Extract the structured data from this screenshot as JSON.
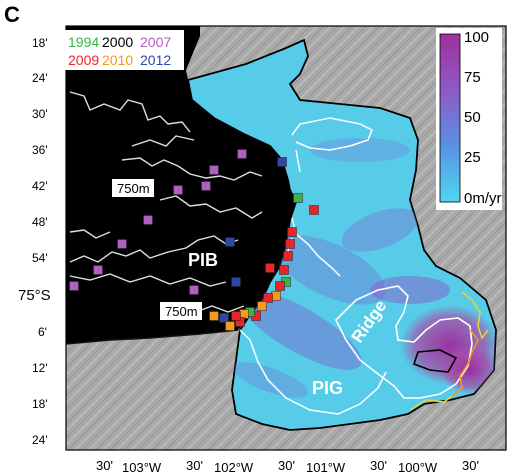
{
  "panel_label": "C",
  "legend_years": [
    {
      "year": "1994",
      "color": "#3cb44b"
    },
    {
      "year": "2000",
      "color": "#000000"
    },
    {
      "year": "2007",
      "color": "#b060c0"
    },
    {
      "year": "2009",
      "color": "#e8262a"
    },
    {
      "year": "2010",
      "color": "#f39a1f"
    },
    {
      "year": "2012",
      "color": "#2f46a8"
    }
  ],
  "colorbar": {
    "ticks": [
      "100",
      "75",
      "50",
      "25",
      "0m/yr"
    ],
    "min_color": "#4fd7f0",
    "max_color": "#9c2a9c"
  },
  "contour_labels": [
    "750m",
    "750m"
  ],
  "region_labels": {
    "pib": "PIB",
    "pig": "PIG",
    "ridge": "Ridge"
  },
  "lat_labels": [
    "18'",
    "24'",
    "30'",
    "36'",
    "42'",
    "48'",
    "54'",
    "75°S",
    "6'",
    "12'",
    "18'",
    "24'"
  ],
  "lon_labels": [
    "30'",
    "103°W",
    "30'",
    "102°W",
    "30'",
    "101°W",
    "30'",
    "100°W",
    "30'"
  ],
  "grounding_line_marks": [
    {
      "color": "#3cb44b"
    },
    {
      "color": "#e8262a"
    },
    {
      "color": "#e8262a"
    },
    {
      "color": "#e8262a"
    },
    {
      "color": "#e8262a"
    },
    {
      "color": "#e8262a"
    },
    {
      "color": "#3cb44b"
    },
    {
      "color": "#e8262a"
    },
    {
      "color": "#e8262a"
    },
    {
      "color": "#f39a1f"
    },
    {
      "color": "#e8262a"
    },
    {
      "color": "#f39a1f"
    },
    {
      "color": "#e8262a"
    },
    {
      "color": "#3cb44b"
    },
    {
      "color": "#f39a1f"
    },
    {
      "color": "#e8262a"
    },
    {
      "color": "#2f46a8"
    },
    {
      "color": "#f39a1f"
    },
    {
      "color": "#e8262a"
    },
    {
      "color": "#f39a1f"
    }
  ],
  "ocean_marks": [
    {
      "color": "#b060c0"
    },
    {
      "color": "#2f46a8"
    },
    {
      "color": "#b060c0"
    },
    {
      "color": "#b060c0"
    },
    {
      "color": "#b060c0"
    },
    {
      "color": "#2f46a8"
    },
    {
      "color": "#b060c0"
    },
    {
      "color": "#b060c0"
    },
    {
      "color": "#b060c0"
    },
    {
      "color": "#2f46a8"
    },
    {
      "color": "#b060c0"
    },
    {
      "color": "#b060c0"
    }
  ]
}
